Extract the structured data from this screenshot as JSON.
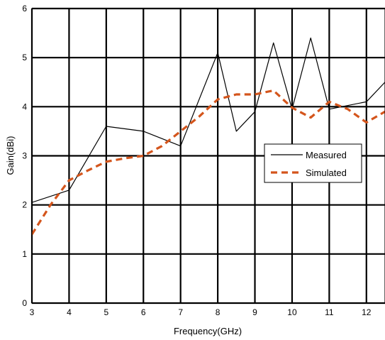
{
  "chart_data": {
    "type": "line",
    "xlabel": "Frequency(GHz)",
    "ylabel": "Gain(dBi)",
    "xlim": [
      3,
      12.5
    ],
    "ylim": [
      0,
      6
    ],
    "xticks": [
      3,
      4,
      5,
      6,
      7,
      8,
      9,
      10,
      11,
      12
    ],
    "yticks": [
      0,
      1,
      2,
      3,
      4,
      5,
      6
    ],
    "grid": true,
    "legend_position": "right-middle",
    "series": [
      {
        "name": "Measured",
        "color": "#000000",
        "style": "solid",
        "x": [
          3,
          4,
          5,
          6,
          7,
          8,
          8.5,
          9,
          9.5,
          10,
          10.5,
          11,
          12,
          12.5
        ],
        "y": [
          2.05,
          2.3,
          3.6,
          3.5,
          3.2,
          5.1,
          3.5,
          3.9,
          5.3,
          3.95,
          5.4,
          3.95,
          4.1,
          4.5
        ]
      },
      {
        "name": "Simulated",
        "color": "#d4551c",
        "style": "dashed",
        "x": [
          3,
          3.5,
          4,
          4.5,
          5,
          5.5,
          6,
          6.5,
          7,
          7.5,
          8,
          8.5,
          9,
          9.5,
          10,
          10.5,
          11,
          11.5,
          12,
          12.5
        ],
        "y": [
          1.4,
          2.0,
          2.5,
          2.7,
          2.88,
          2.95,
          3.0,
          3.2,
          3.5,
          3.8,
          4.15,
          4.25,
          4.25,
          4.33,
          3.98,
          3.78,
          4.1,
          3.95,
          3.68,
          3.9
        ]
      }
    ]
  }
}
